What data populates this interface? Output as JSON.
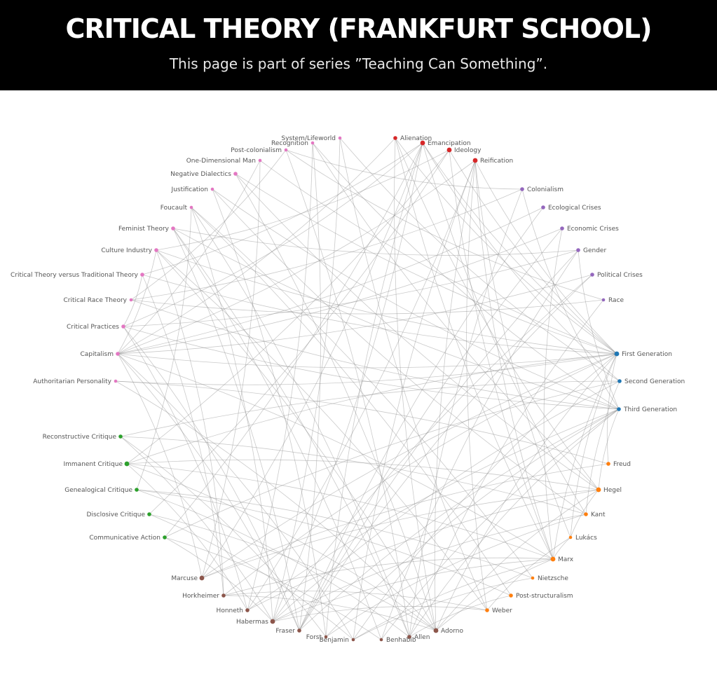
{
  "header": {
    "title": "CRITICAL THEORY (FRANKFURT SCHOOL)",
    "subtitle": "This page is part of series ”Teaching Can Something”."
  },
  "groups": {
    "concepts": {
      "color": "#e377c2"
    },
    "reification": {
      "color": "#d62728"
    },
    "crises": {
      "color": "#9467bd"
    },
    "generations": {
      "color": "#1f77b4"
    },
    "influences": {
      "color": "#ff7f0e"
    },
    "thinkers": {
      "color": "#8c564b"
    },
    "critique": {
      "color": "#2ca02c"
    }
  },
  "nodes": [
    {
      "label": "Alienation",
      "group": "reification",
      "size": "s"
    },
    {
      "label": "Emancipation",
      "group": "reification",
      "size": "m"
    },
    {
      "label": "Ideology",
      "group": "reification",
      "size": "m"
    },
    {
      "label": "Reification",
      "group": "reification",
      "size": "m"
    },
    {
      "label": "Colonialism",
      "group": "crises",
      "size": "s"
    },
    {
      "label": "Ecological Crises",
      "group": "crises",
      "size": "s"
    },
    {
      "label": "Economic Crises",
      "group": "crises",
      "size": "s"
    },
    {
      "label": "Gender",
      "group": "crises",
      "size": "s"
    },
    {
      "label": "Political Crises",
      "group": "crises",
      "size": "s"
    },
    {
      "label": "Race",
      "group": "crises",
      "size": "xs"
    },
    {
      "label": "First Generation",
      "group": "generations",
      "size": "m"
    },
    {
      "label": "Second Generation",
      "group": "generations",
      "size": "s"
    },
    {
      "label": "Third Generation",
      "group": "generations",
      "size": "s"
    },
    {
      "label": "Freud",
      "group": "influences",
      "size": "s"
    },
    {
      "label": "Hegel",
      "group": "influences",
      "size": "m"
    },
    {
      "label": "Kant",
      "group": "influences",
      "size": "s"
    },
    {
      "label": "Lukács",
      "group": "influences",
      "size": "xs"
    },
    {
      "label": "Marx",
      "group": "influences",
      "size": "m"
    },
    {
      "label": "Nietzsche",
      "group": "influences",
      "size": "xs"
    },
    {
      "label": "Post-structuralism",
      "group": "influences",
      "size": "s"
    },
    {
      "label": "Weber",
      "group": "influences",
      "size": "s"
    },
    {
      "label": "Adorno",
      "group": "thinkers",
      "size": "m"
    },
    {
      "label": "Allen",
      "group": "thinkers",
      "size": "s"
    },
    {
      "label": "Benhabib",
      "group": "thinkers",
      "size": "xs"
    },
    {
      "label": "Benjamin",
      "group": "thinkers",
      "size": "xs"
    },
    {
      "label": "Forst",
      "group": "thinkers",
      "size": "xs"
    },
    {
      "label": "Fraser",
      "group": "thinkers",
      "size": "s"
    },
    {
      "label": "Habermas",
      "group": "thinkers",
      "size": "m"
    },
    {
      "label": "Honneth",
      "group": "thinkers",
      "size": "s"
    },
    {
      "label": "Horkheimer",
      "group": "thinkers",
      "size": "s"
    },
    {
      "label": "Marcuse",
      "group": "thinkers",
      "size": "m"
    },
    {
      "label": "Communicative Action",
      "group": "critique",
      "size": "s"
    },
    {
      "label": "Disclosive Critique",
      "group": "critique",
      "size": "s"
    },
    {
      "label": "Genealogical Critique",
      "group": "critique",
      "size": "s"
    },
    {
      "label": "Immanent Critique",
      "group": "critique",
      "size": "m"
    },
    {
      "label": "Reconstructive Critique",
      "group": "critique",
      "size": "s"
    },
    {
      "label": "Authoritarian Personality",
      "group": "concepts",
      "size": "xs"
    },
    {
      "label": "Capitalism",
      "group": "concepts",
      "size": "s"
    },
    {
      "label": "Critical Practices",
      "group": "concepts",
      "size": "s"
    },
    {
      "label": "Critical Race Theory",
      "group": "concepts",
      "size": "xs"
    },
    {
      "label": "Critical Theory versus Traditional Theory",
      "group": "concepts",
      "size": "s"
    },
    {
      "label": "Culture Industry",
      "group": "concepts",
      "size": "s"
    },
    {
      "label": "Feminist Theory",
      "group": "concepts",
      "size": "s"
    },
    {
      "label": "Foucault",
      "group": "concepts",
      "size": "xs"
    },
    {
      "label": "Justification",
      "group": "concepts",
      "size": "xs"
    },
    {
      "label": "Negative Dialectics",
      "group": "concepts",
      "size": "s"
    },
    {
      "label": "One-Dimensional Man",
      "group": "concepts",
      "size": "xs"
    },
    {
      "label": "Post-colonialism",
      "group": "concepts",
      "size": "xs"
    },
    {
      "label": "Recognition",
      "group": "concepts",
      "size": "xs"
    },
    {
      "label": "System/Lifeworld",
      "group": "concepts",
      "size": "xs"
    }
  ],
  "edges": [
    [
      "First Generation",
      "Adorno"
    ],
    [
      "First Generation",
      "Horkheimer"
    ],
    [
      "First Generation",
      "Marcuse"
    ],
    [
      "First Generation",
      "Benjamin"
    ],
    [
      "First Generation",
      "Culture Industry"
    ],
    [
      "First Generation",
      "Authoritarian Personality"
    ],
    [
      "First Generation",
      "Negative Dialectics"
    ],
    [
      "First Generation",
      "One-Dimensional Man"
    ],
    [
      "First Generation",
      "Critical Theory versus Traditional Theory"
    ],
    [
      "First Generation",
      "Reification"
    ],
    [
      "First Generation",
      "Marx"
    ],
    [
      "First Generation",
      "Freud"
    ],
    [
      "First Generation",
      "Immanent Critique"
    ],
    [
      "First Generation",
      "Capitalism"
    ],
    [
      "Second Generation",
      "Habermas"
    ],
    [
      "Second Generation",
      "Communicative Action"
    ],
    [
      "Second Generation",
      "System/Lifeworld"
    ],
    [
      "Second Generation",
      "Reconstructive Critique"
    ],
    [
      "Second Generation",
      "Kant"
    ],
    [
      "Third Generation",
      "Honneth"
    ],
    [
      "Third Generation",
      "Fraser"
    ],
    [
      "Third Generation",
      "Benhabib"
    ],
    [
      "Third Generation",
      "Forst"
    ],
    [
      "Third Generation",
      "Allen"
    ],
    [
      "Third Generation",
      "Recognition"
    ],
    [
      "Third Generation",
      "Justification"
    ],
    [
      "Third Generation",
      "Hegel"
    ],
    [
      "Adorno",
      "Culture Industry"
    ],
    [
      "Adorno",
      "Negative Dialectics"
    ],
    [
      "Adorno",
      "Authoritarian Personality"
    ],
    [
      "Adorno",
      "Hegel"
    ],
    [
      "Adorno",
      "Marx"
    ],
    [
      "Adorno",
      "Horkheimer"
    ],
    [
      "Adorno",
      "Reification"
    ],
    [
      "Adorno",
      "Immanent Critique"
    ],
    [
      "Adorno",
      "Alienation"
    ],
    [
      "Horkheimer",
      "Critical Theory versus Traditional Theory"
    ],
    [
      "Horkheimer",
      "Culture Industry"
    ],
    [
      "Horkheimer",
      "Marx"
    ],
    [
      "Horkheimer",
      "Weber"
    ],
    [
      "Marcuse",
      "One-Dimensional Man"
    ],
    [
      "Marcuse",
      "Freud"
    ],
    [
      "Marcuse",
      "Emancipation"
    ],
    [
      "Marcuse",
      "Capitalism"
    ],
    [
      "Marcuse",
      "Hegel"
    ],
    [
      "Benjamin",
      "Reification"
    ],
    [
      "Benjamin",
      "Marx"
    ],
    [
      "Benjamin",
      "Nietzsche"
    ],
    [
      "Benjamin",
      "Capitalism"
    ],
    [
      "Habermas",
      "Communicative Action"
    ],
    [
      "Habermas",
      "System/Lifeworld"
    ],
    [
      "Habermas",
      "Kant"
    ],
    [
      "Habermas",
      "Weber"
    ],
    [
      "Habermas",
      "Reconstructive Critique"
    ],
    [
      "Habermas",
      "Emancipation"
    ],
    [
      "Habermas",
      "Marx"
    ],
    [
      "Habermas",
      "Foucault"
    ],
    [
      "Honneth",
      "Recognition"
    ],
    [
      "Honneth",
      "Hegel"
    ],
    [
      "Honneth",
      "Reification"
    ],
    [
      "Honneth",
      "Immanent Critique"
    ],
    [
      "Honneth",
      "Critical Practices"
    ],
    [
      "Fraser",
      "Feminist Theory"
    ],
    [
      "Fraser",
      "Gender"
    ],
    [
      "Fraser",
      "Recognition"
    ],
    [
      "Fraser",
      "Capitalism"
    ],
    [
      "Fraser",
      "Economic Crises"
    ],
    [
      "Fraser",
      "Ecological Crises"
    ],
    [
      "Fraser",
      "Political Crises"
    ],
    [
      "Fraser",
      "Critical Practices"
    ],
    [
      "Forst",
      "Justification"
    ],
    [
      "Forst",
      "Kant"
    ],
    [
      "Forst",
      "Reconstructive Critique"
    ],
    [
      "Forst",
      "Emancipation"
    ],
    [
      "Benhabib",
      "Feminist Theory"
    ],
    [
      "Benhabib",
      "Communicative Action"
    ],
    [
      "Benhabib",
      "Gender"
    ],
    [
      "Allen",
      "Foucault"
    ],
    [
      "Allen",
      "Post-colonialism"
    ],
    [
      "Allen",
      "Genealogical Critique"
    ],
    [
      "Allen",
      "Colonialism"
    ],
    [
      "Allen",
      "Feminist Theory"
    ],
    [
      "Allen",
      "Post-structuralism"
    ],
    [
      "Allen",
      "Race"
    ],
    [
      "Genealogical Critique",
      "Nietzsche"
    ],
    [
      "Genealogical Critique",
      "Foucault"
    ],
    [
      "Genealogical Critique",
      "Post-structuralism"
    ],
    [
      "Disclosive Critique",
      "Benjamin"
    ],
    [
      "Disclosive Critique",
      "Adorno"
    ],
    [
      "Disclosive Critique",
      "Ideology"
    ],
    [
      "Immanent Critique",
      "Hegel"
    ],
    [
      "Immanent Critique",
      "Ideology"
    ],
    [
      "Immanent Critique",
      "Marx"
    ],
    [
      "Reconstructive Critique",
      "Kant"
    ],
    [
      "Communicative Action",
      "Emancipation"
    ],
    [
      "Critical Race Theory",
      "Race"
    ],
    [
      "Critical Race Theory",
      "Colonialism"
    ],
    [
      "Critical Race Theory",
      "Post-colonialism"
    ],
    [
      "Post-colonialism",
      "Colonialism"
    ],
    [
      "Post-colonialism",
      "Race"
    ],
    [
      "Capitalism",
      "Economic Crises"
    ],
    [
      "Capitalism",
      "Ecological Crises"
    ],
    [
      "Capitalism",
      "Political Crises"
    ],
    [
      "Capitalism",
      "Alienation"
    ],
    [
      "Capitalism",
      "Reification"
    ],
    [
      "Capitalism",
      "Marx"
    ],
    [
      "Alienation",
      "Marx"
    ],
    [
      "Alienation",
      "Hegel"
    ],
    [
      "Reification",
      "Lukács"
    ],
    [
      "Reification",
      "Marx"
    ],
    [
      "Reification",
      "Weber"
    ],
    [
      "Ideology",
      "Marx"
    ],
    [
      "Ideology",
      "Culture Industry"
    ],
    [
      "Emancipation",
      "Kant"
    ],
    [
      "Emancipation",
      "Critical Practices"
    ],
    [
      "Lukács",
      "Hegel"
    ],
    [
      "Lukács",
      "Marx"
    ],
    [
      "Lukács",
      "Weber"
    ],
    [
      "Lukács",
      "First Generation"
    ],
    [
      "Culture Industry",
      "Weber"
    ],
    [
      "Culture Industry",
      "Capitalism"
    ],
    [
      "Feminist Theory",
      "Gender"
    ],
    [
      "Gender",
      "Critical Practices"
    ],
    [
      "Political Crises",
      "Habermas"
    ],
    [
      "Economic Crises",
      "Marx"
    ],
    [
      "System/Lifeworld",
      "Weber"
    ],
    [
      "Recognition",
      "Hegel"
    ],
    [
      "Justification",
      "Kant"
    ],
    [
      "Critical Theory versus Traditional Theory",
      "Critical Practices"
    ],
    [
      "Critical Theory versus Traditional Theory",
      "Emancipation"
    ],
    [
      "Authoritarian Personality",
      "Freud"
    ],
    [
      "Negative Dialectics",
      "Hegel"
    ],
    [
      "One-Dimensional Man",
      "Capitalism"
    ],
    [
      "Foucault",
      "Post-structuralism"
    ],
    [
      "Foucault",
      "Nietzsche"
    ],
    [
      "First Generation",
      "Alienation"
    ],
    [
      "First Generation",
      "Ideology"
    ],
    [
      "First Generation",
      "Emancipation"
    ],
    [
      "Second Generation",
      "Emancipation"
    ],
    [
      "Third Generation",
      "Critical Practices"
    ],
    [
      "Third Generation",
      "Gender"
    ],
    [
      "Third Generation",
      "Colonialism"
    ],
    [
      "Third Generation",
      "Feminist Theory"
    ],
    [
      "Third Generation",
      "Critical Race Theory"
    ]
  ]
}
